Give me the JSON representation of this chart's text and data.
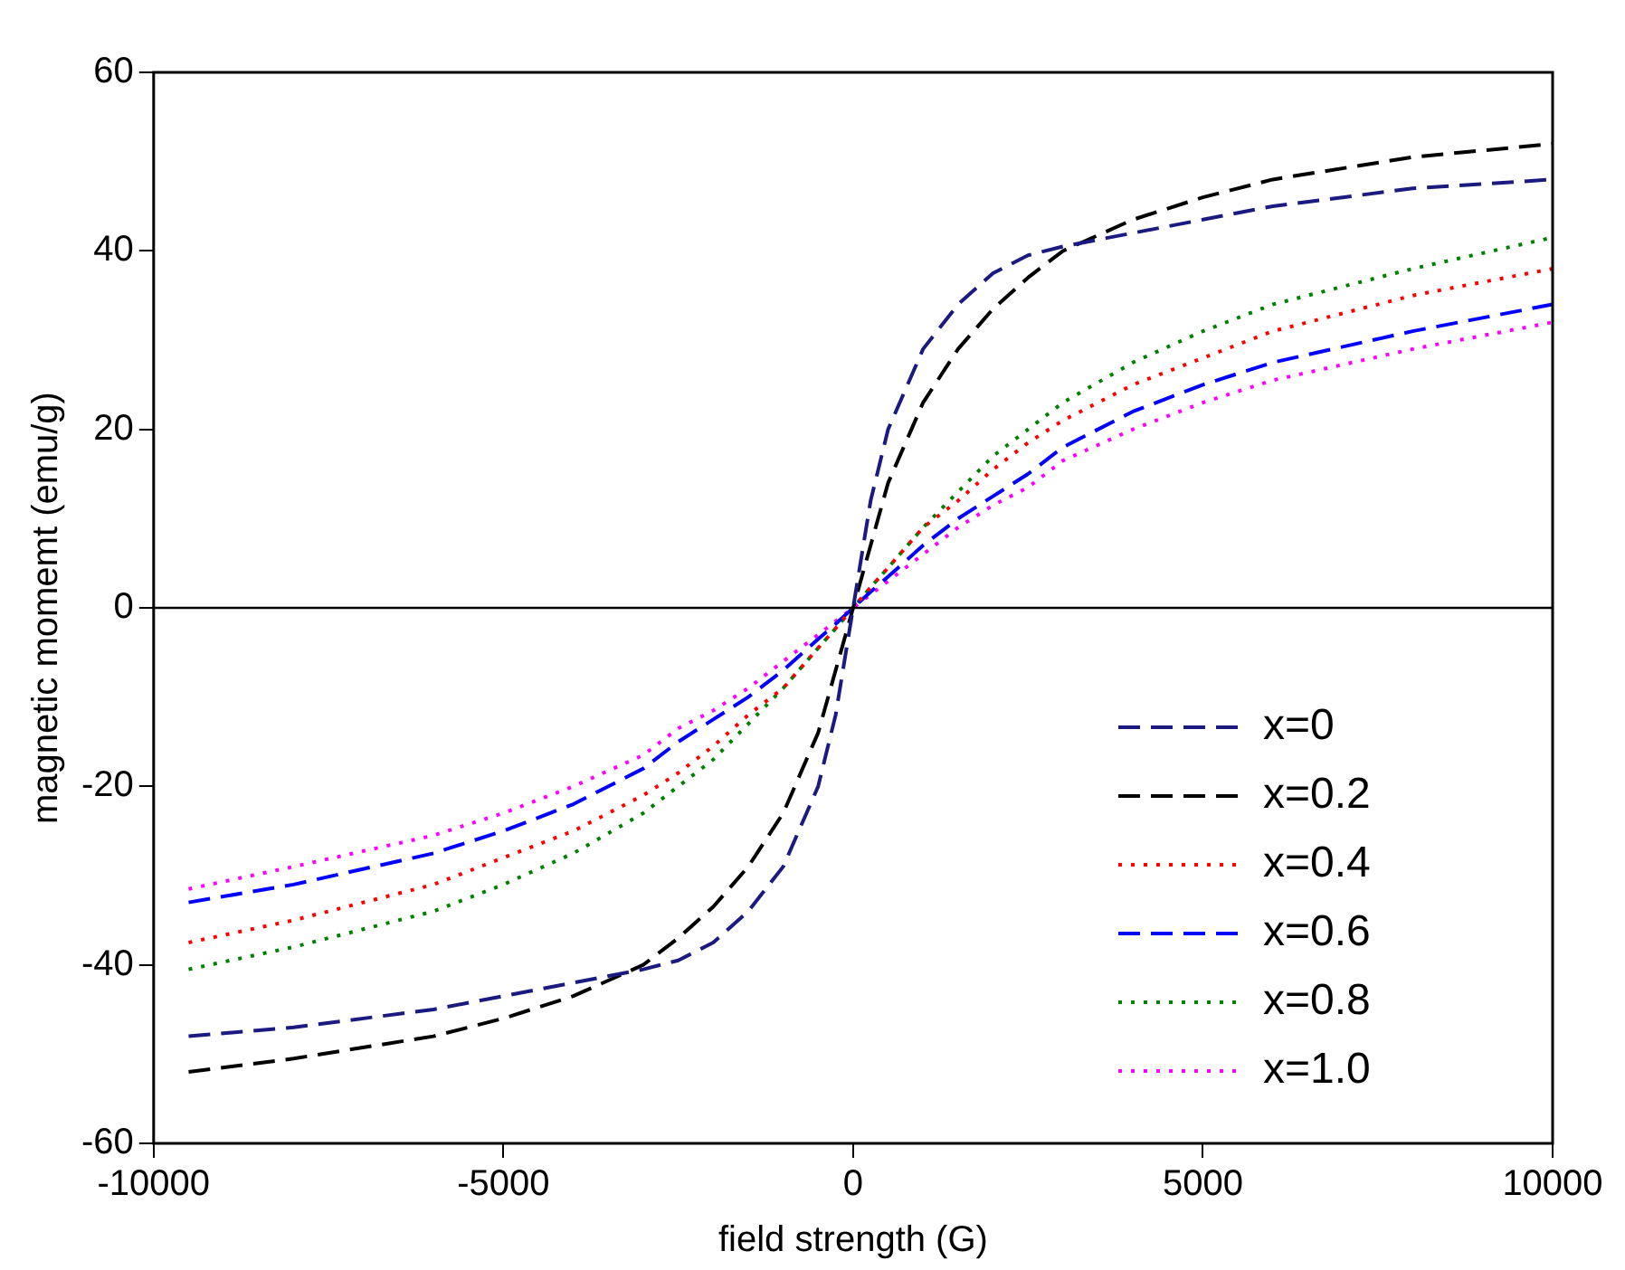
{
  "chart_data": {
    "type": "line",
    "xlabel": "field strength (G)",
    "ylabel": "magnetic momemt (emu/g)",
    "xlim": [
      -10000,
      10000
    ],
    "xticks": [
      -10000,
      -5000,
      0,
      5000,
      10000
    ],
    "ylim": [
      -60,
      60
    ],
    "yticks": [
      -60,
      -40,
      -20,
      0,
      20,
      40,
      60
    ],
    "x": [
      -9500,
      -8000,
      -6000,
      -5000,
      -4000,
      -3000,
      -2500,
      -2000,
      -1500,
      -1000,
      -500,
      -250,
      0,
      250,
      500,
      1000,
      1500,
      2000,
      2500,
      3000,
      4000,
      5000,
      6000,
      8000,
      10000
    ],
    "series": [
      {
        "name": "x=0",
        "color": "#1a1a80",
        "line_style": "dashed",
        "values": [
          -48,
          -47,
          -45,
          -43.5,
          -42,
          -40.5,
          -39.5,
          -37.5,
          -34,
          -29,
          -20,
          -12,
          0,
          12,
          20,
          29,
          34,
          37.5,
          39.5,
          40.5,
          42,
          43.5,
          45,
          47,
          48
        ]
      },
      {
        "name": "x=0.2",
        "color": "#000000",
        "line_style": "dashed",
        "values": [
          -52,
          -50.5,
          -48,
          -46,
          -43.5,
          -40,
          -37,
          -33.5,
          -29,
          -23,
          -14,
          -7,
          0,
          7,
          14,
          23,
          29,
          33.5,
          37,
          40,
          43.5,
          46,
          48,
          50.5,
          52
        ]
      },
      {
        "name": "x=0.4",
        "color": "#ff0000",
        "line_style": "dotted",
        "values": [
          -37.5,
          -35,
          -31,
          -28,
          -25,
          -21,
          -18.5,
          -15.5,
          -12,
          -9,
          -4.5,
          -2.3,
          0,
          2.3,
          4.5,
          9,
          12,
          15.5,
          18.5,
          21,
          25,
          28,
          31,
          35,
          38
        ]
      },
      {
        "name": "x=0.6",
        "color": "#0000ff",
        "line_style": "dashed",
        "values": [
          -33,
          -31,
          -27.5,
          -25,
          -22,
          -18,
          -15,
          -12.5,
          -10,
          -7,
          -3.5,
          -1.8,
          0,
          1.8,
          3.5,
          7,
          10,
          12.5,
          15,
          18,
          22,
          25,
          27.5,
          31,
          34
        ]
      },
      {
        "name": "x=0.8",
        "color": "#008000",
        "line_style": "dotted",
        "values": [
          -40.5,
          -38,
          -34,
          -31,
          -27.5,
          -23,
          -20,
          -17,
          -13,
          -9,
          -4.5,
          -2.3,
          0,
          2.3,
          4.5,
          9,
          13,
          17,
          20,
          23,
          27.5,
          31,
          34,
          38,
          41.5
        ]
      },
      {
        "name": "x=1.0",
        "color": "#ff00ff",
        "line_style": "dotted",
        "values": [
          -31.5,
          -29,
          -25.5,
          -23,
          -20,
          -16.5,
          -13.5,
          -11.5,
          -9,
          -6,
          -3,
          -1.5,
          0,
          1.5,
          3,
          6,
          9,
          11.5,
          13.5,
          16.5,
          20,
          23,
          25.5,
          29,
          32
        ]
      }
    ],
    "ref_lines": [
      {
        "axis": "y",
        "value": 0,
        "color": "#000000"
      }
    ],
    "legend": "bottom right",
    "grid": false,
    "marker": "none"
  }
}
